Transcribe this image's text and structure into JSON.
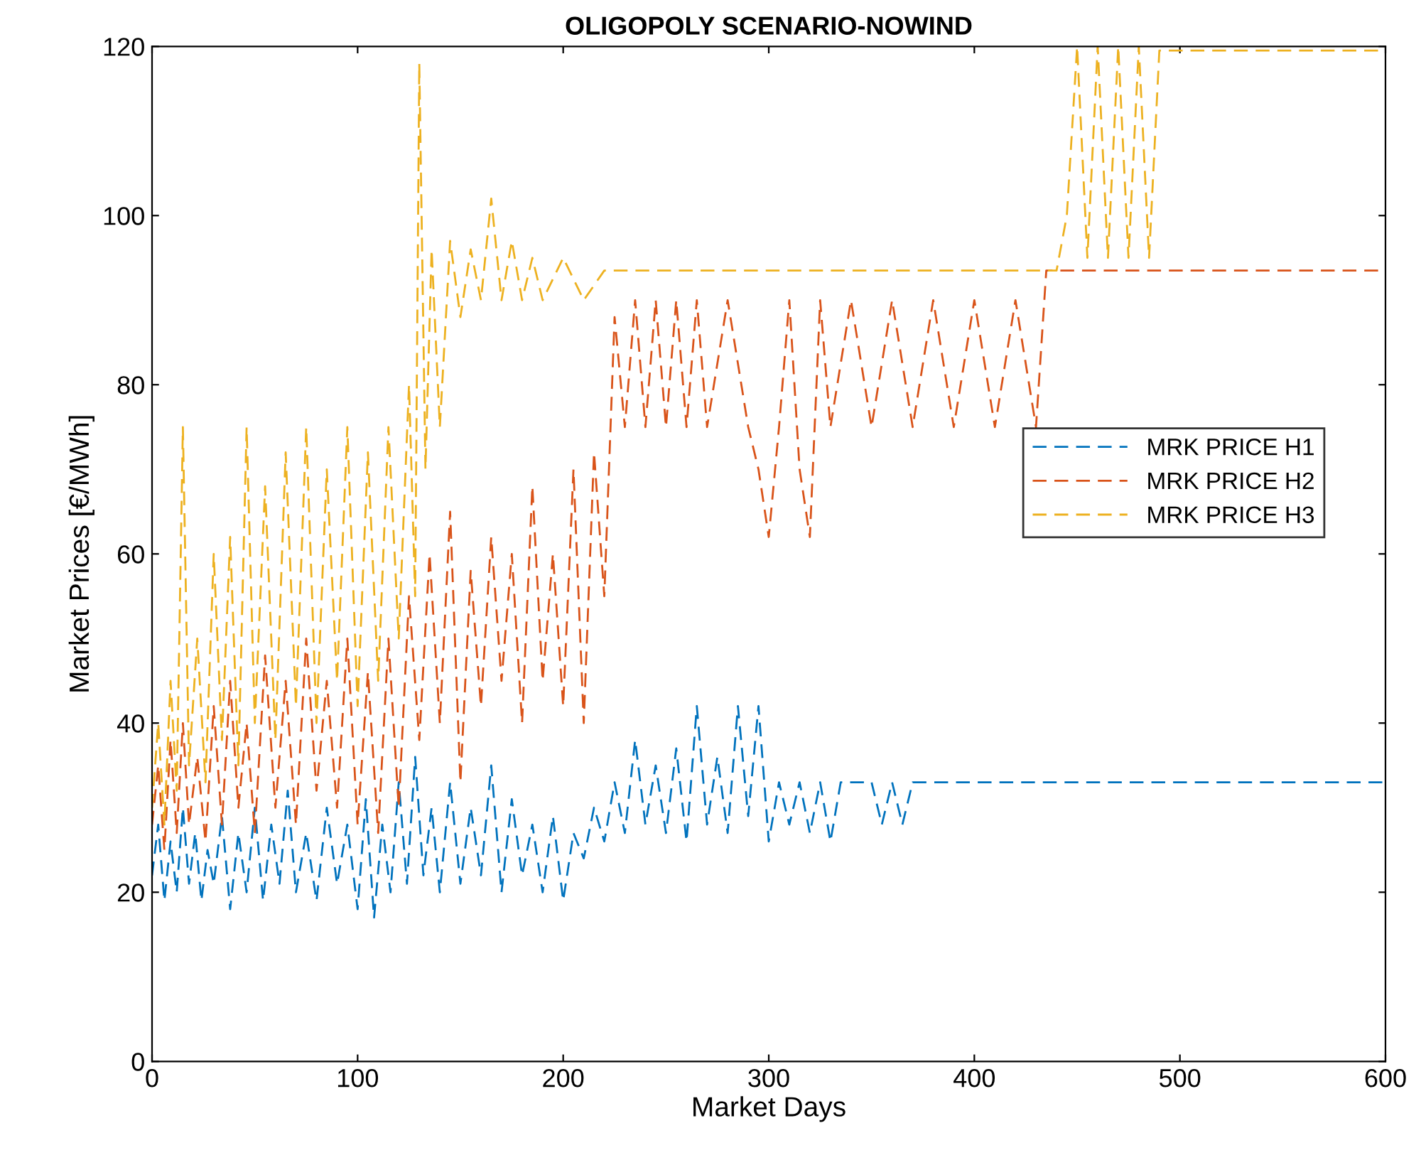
{
  "chart_data": {
    "type": "line",
    "title": "OLIGOPOLY SCENARIO-NOWIND",
    "xlabel": "Market Days",
    "ylabel": "Market Prices [€/MWh]",
    "xlim": [
      0,
      600
    ],
    "ylim": [
      0,
      120
    ],
    "xticks": [
      0,
      100,
      200,
      300,
      400,
      500,
      600
    ],
    "yticks": [
      0,
      20,
      40,
      60,
      80,
      100,
      120
    ],
    "grid": false,
    "legend": "right",
    "line_style": "dashed",
    "marker": "none",
    "series": [
      {
        "name": "MRK PRICE H1",
        "color": "#0072bd",
        "x": [
          0,
          3,
          6,
          9,
          12,
          15,
          18,
          21,
          24,
          27,
          30,
          34,
          38,
          42,
          46,
          50,
          54,
          58,
          62,
          66,
          70,
          75,
          80,
          85,
          90,
          95,
          100,
          104,
          108,
          112,
          116,
          120,
          124,
          128,
          132,
          136,
          140,
          145,
          150,
          155,
          160,
          165,
          170,
          175,
          180,
          185,
          190,
          195,
          200,
          205,
          210,
          215,
          220,
          225,
          230,
          235,
          240,
          245,
          250,
          255,
          260,
          265,
          270,
          275,
          280,
          285,
          290,
          295,
          300,
          305,
          310,
          315,
          320,
          325,
          330,
          335,
          350,
          355,
          360,
          365,
          370,
          600
        ],
        "values": [
          22,
          28,
          19,
          26,
          20,
          30,
          21,
          27,
          19,
          25,
          21,
          29,
          18,
          27,
          20,
          30,
          19,
          28,
          21,
          32,
          20,
          27,
          19,
          30,
          21,
          28,
          18,
          31,
          17,
          28,
          20,
          33,
          21,
          36,
          22,
          30,
          20,
          33,
          21,
          30,
          22,
          35,
          20,
          31,
          22,
          28,
          20,
          29,
          19,
          27,
          24,
          30,
          26,
          33,
          27,
          38,
          28,
          35,
          27,
          37,
          26,
          42,
          28,
          36,
          27,
          42,
          29,
          42,
          26,
          33,
          28,
          33,
          27,
          33,
          26,
          33,
          33,
          28,
          33,
          28,
          33,
          33
        ]
      },
      {
        "name": "MRK PRICE H2",
        "color": "#d95319",
        "x": [
          0,
          3,
          6,
          9,
          12,
          15,
          18,
          22,
          26,
          30,
          34,
          38,
          42,
          46,
          50,
          55,
          60,
          65,
          70,
          75,
          80,
          85,
          90,
          95,
          100,
          105,
          110,
          115,
          120,
          125,
          130,
          135,
          140,
          145,
          150,
          155,
          160,
          165,
          170,
          175,
          180,
          185,
          190,
          195,
          200,
          205,
          210,
          215,
          220,
          225,
          230,
          235,
          240,
          245,
          250,
          255,
          260,
          265,
          270,
          280,
          290,
          295,
          300,
          305,
          310,
          315,
          320,
          325,
          330,
          340,
          350,
          360,
          370,
          380,
          390,
          400,
          410,
          420,
          430,
          435,
          600
        ],
        "values": [
          28,
          35,
          25,
          38,
          27,
          40,
          28,
          36,
          26,
          42,
          28,
          45,
          30,
          40,
          27,
          48,
          30,
          45,
          28,
          50,
          32,
          45,
          30,
          50,
          28,
          46,
          27,
          50,
          30,
          55,
          38,
          60,
          40,
          65,
          33,
          58,
          42,
          62,
          45,
          60,
          40,
          68,
          45,
          60,
          42,
          70,
          40,
          72,
          55,
          88,
          75,
          90,
          75,
          90,
          75,
          90,
          75,
          90,
          75,
          90,
          75,
          70,
          62,
          75,
          90,
          70,
          62,
          90,
          75,
          90,
          75,
          90,
          75,
          90,
          75,
          90,
          75,
          90,
          75,
          93.5,
          93.5
        ]
      },
      {
        "name": "MRK PRICE H3",
        "color": "#edb120",
        "x": [
          0,
          3,
          6,
          9,
          12,
          15,
          18,
          22,
          26,
          30,
          34,
          38,
          42,
          46,
          50,
          55,
          60,
          65,
          70,
          75,
          80,
          85,
          90,
          95,
          100,
          105,
          110,
          115,
          120,
          125,
          128,
          130,
          133,
          136,
          140,
          145,
          150,
          155,
          160,
          165,
          170,
          175,
          180,
          185,
          190,
          200,
          210,
          220,
          440,
          445,
          450,
          455,
          460,
          465,
          470,
          475,
          480,
          485,
          490,
          600
        ],
        "values": [
          30,
          40,
          28,
          45,
          32,
          75,
          35,
          50,
          33,
          60,
          38,
          62,
          35,
          75,
          40,
          68,
          38,
          72,
          42,
          75,
          40,
          70,
          45,
          75,
          42,
          72,
          45,
          75,
          50,
          80,
          55,
          118,
          70,
          96,
          75,
          97,
          88,
          96,
          90,
          102,
          90,
          97,
          90,
          95,
          90,
          95,
          90,
          93.5,
          93.5,
          100,
          120,
          95,
          120,
          95,
          120,
          95,
          120,
          95,
          119.5,
          119.5
        ]
      }
    ]
  }
}
